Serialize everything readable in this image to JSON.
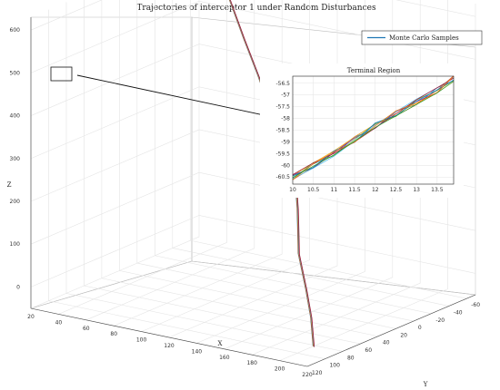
{
  "chart_data": {
    "type": "line",
    "title": "Trajectories of interceptor 1 under Random Disturbances",
    "xlabel": "X",
    "ylabel": "Y",
    "zlabel": "Z",
    "x_ticks": [
      "20",
      "40",
      "60",
      "80",
      "100",
      "120",
      "140",
      "160",
      "180",
      "200",
      "220"
    ],
    "y_ticks": [
      "-60",
      "-40",
      "-20",
      "0",
      "20",
      "40",
      "60",
      "80",
      "100",
      "120"
    ],
    "z_ticks": [
      "0",
      "100",
      "200",
      "300",
      "400",
      "500",
      "600"
    ],
    "xlim": [
      20,
      220
    ],
    "ylim": [
      -70,
      120
    ],
    "zlim": [
      -50,
      630
    ],
    "grid": true,
    "legend": {
      "entries": [
        "Monte Carlo Samples"
      ],
      "position": "top-right"
    },
    "series": [
      {
        "name": "Monte Carlo Samples",
        "x": [
          38,
          55,
          75,
          95,
          115,
          135,
          150,
          158,
          165,
          175,
          185,
          200,
          210,
          215
        ],
        "y": [
          -64,
          -50,
          -35,
          -20,
          -5,
          10,
          25,
          35,
          45,
          60,
          75,
          90,
          100,
          105
        ],
        "z": [
          600,
          545,
          480,
          420,
          350,
          275,
          255,
          230,
          215,
          190,
          150,
          90,
          40,
          -20
        ]
      }
    ],
    "inset": {
      "title": "Terminal Region",
      "x_ticks": [
        "10",
        "10.5",
        "11",
        "11.5",
        "12",
        "12.5",
        "13",
        "13.5"
      ],
      "y_ticks": [
        "-56.5",
        "-57",
        "-57.5",
        "-58",
        "-58.5",
        "-59",
        "-59.5",
        "-60",
        "-60.5"
      ],
      "xlim": [
        10,
        13.9
      ],
      "ylim": [
        -60.8,
        -56.2
      ],
      "x": [
        10,
        10.5,
        11,
        11.5,
        12,
        12.5,
        13,
        13.5,
        13.9
      ],
      "y": [
        -60.5,
        -60.0,
        -59.5,
        -58.9,
        -58.3,
        -57.8,
        -57.3,
        -56.8,
        -56.3
      ]
    }
  }
}
